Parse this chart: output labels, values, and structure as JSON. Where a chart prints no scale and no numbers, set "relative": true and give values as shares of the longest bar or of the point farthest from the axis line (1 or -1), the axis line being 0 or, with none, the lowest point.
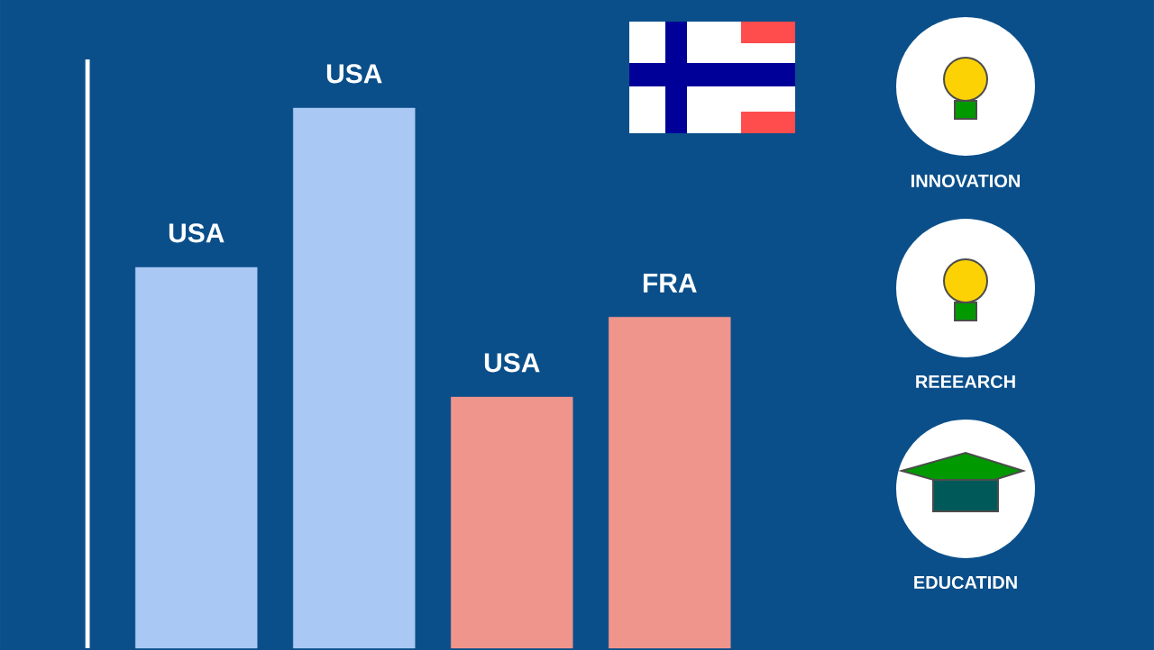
{
  "chart_data": {
    "type": "bar",
    "relative": true,
    "categories": [
      "USA",
      "USA",
      "USA",
      "FRA"
    ],
    "values": [
      0.705,
      1,
      0.465,
      0.613
    ],
    "colors": [
      "#aac8f4",
      "#aac8f4",
      "#f0958c",
      "#f0958c"
    ],
    "annotations": [
      "INNOVATION",
      "REEEARCH",
      "EDUCATIDN"
    ]
  }
}
